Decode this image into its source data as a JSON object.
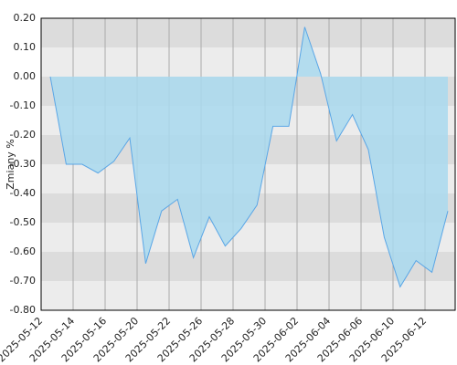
{
  "chart_data": {
    "type": "area",
    "y_label": "Zmiany %",
    "x_labels": [
      "2025-05-12",
      "2025-05-14",
      "2025-05-16",
      "2025-05-20",
      "2025-05-22",
      "2025-05-26",
      "2025-05-28",
      "2025-05-30",
      "2025-06-02",
      "2025-06-04",
      "2025-06-06",
      "2025-06-10",
      "2025-06-12"
    ],
    "values": [
      0.0,
      -0.3,
      -0.3,
      -0.33,
      -0.29,
      -0.21,
      -0.64,
      -0.46,
      -0.42,
      -0.62,
      -0.48,
      -0.58,
      -0.52,
      -0.44,
      -0.17,
      -0.17,
      0.17,
      0.01,
      -0.22,
      -0.13,
      -0.25,
      -0.55,
      -0.72,
      -0.63,
      -0.67,
      -0.46
    ],
    "color": "#5aa6e6",
    "fill": "#a9d9ee",
    "ylim": [
      -0.8,
      0.2
    ],
    "yticks": [
      {
        "value": 0.2,
        "label": "0.20"
      },
      {
        "value": 0.1,
        "label": "0.10"
      },
      {
        "value": 0,
        "label": "0.00"
      },
      {
        "value": -0.1,
        "label": "-0.10"
      },
      {
        "value": -0.2,
        "label": "-0.20"
      },
      {
        "value": -0.3,
        "label": "-0.30"
      },
      {
        "value": -0.4,
        "label": "-0.40"
      },
      {
        "value": -0.5,
        "label": "-0.50"
      },
      {
        "value": -0.6,
        "label": "-0.60"
      },
      {
        "value": -0.7,
        "label": "-0.70"
      },
      {
        "value": -0.8,
        "label": "-0.80"
      }
    ],
    "grid": true
  }
}
